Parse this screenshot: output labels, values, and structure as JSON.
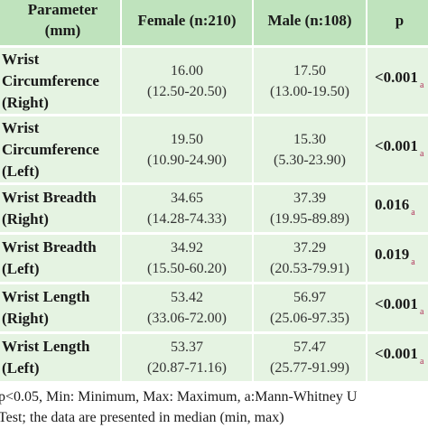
{
  "table": {
    "headers": {
      "parameter_line1": "Parameter",
      "parameter_line2": "(mm)",
      "female": "Female (n:210)",
      "male": "Male (n:108)",
      "p": "p"
    },
    "rows": [
      {
        "name_line1": "Wrist",
        "name_line2": "Circumference",
        "name_line3": "(Right)",
        "female_median": "16.00",
        "female_range": "(12.50-20.50)",
        "male_median": "17.50",
        "male_range": "(13.00-19.50)",
        "p": "<0.001",
        "p_marker": "a"
      },
      {
        "name_line1": "Wrist",
        "name_line2": "Circumference",
        "name_line3": "(Left)",
        "female_median": "19.50",
        "female_range": "(10.90-24.90)",
        "male_median": "15.30",
        "male_range": "(5.30-23.90)",
        "p": "<0.001",
        "p_marker": "a"
      },
      {
        "name_line1": "Wrist Breadth",
        "name_line2": "(Right)",
        "female_median": "34.65",
        "female_range": "(14.28-74.33)",
        "male_median": "37.39",
        "male_range": "(19.95-89.89)",
        "p": "0.016",
        "p_marker": "a"
      },
      {
        "name_line1": "Wrist Breadth",
        "name_line2": "(Left)",
        "female_median": "34.92",
        "female_range": "(15.50-60.20)",
        "male_median": "37.29",
        "male_range": "(20.53-79.91)",
        "p": "0.019",
        "p_marker": "a"
      },
      {
        "name_line1": "Wrist Length",
        "name_line2": "(Right)",
        "female_median": "53.42",
        "female_range": "(33.06-72.00)",
        "male_median": "56.97",
        "male_range": "(25.06-97.35)",
        "p": "<0.001",
        "p_marker": "a"
      },
      {
        "name_line1": "Wrist Length",
        "name_line2": "(Left)",
        "female_median": "53.37",
        "female_range": "(20.87-71.16)",
        "male_median": "57.47",
        "male_range": "(25.77-91.99)",
        "p": "<0.001",
        "p_marker": "a"
      }
    ]
  },
  "footnote": {
    "line1": "p<0.05, Min: Minimum, Max: Maximum, a:Mann-Whitney U",
    "line2": "Test; the data are presented in median (min, max)"
  },
  "colors": {
    "header_bg": "#bfe3bd",
    "row_bg": "#e5f3e2",
    "marker": "#b0335a"
  }
}
